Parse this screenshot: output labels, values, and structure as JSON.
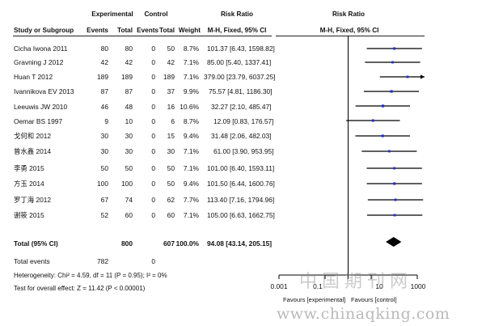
{
  "headers": {
    "experimental": "Experimental",
    "control": "Control",
    "risk_ratio": "Risk Ratio",
    "risk_ratio_plot": "Risk Ratio",
    "study": "Study or Subgroup",
    "events": "Events",
    "total": "Total",
    "events2": "Events",
    "total2": "Total",
    "weight": "Weight",
    "ci_label": "M-H, Fixed, 95% CI",
    "ci_label_plot": "M-H, Fixed, 95% CI"
  },
  "rows": [
    {
      "study": "Cicha Iwona 2011",
      "e_events": "80",
      "e_total": "80",
      "c_events": "0",
      "c_total": "50",
      "weight": "8.7%",
      "rr": "101.37 [6.43, 1598.82]"
    },
    {
      "study": "Gravning J 2012",
      "e_events": "42",
      "e_total": "42",
      "c_events": "0",
      "c_total": "42",
      "weight": "7.1%",
      "rr": "85.00 [5.40, 1337.41]"
    },
    {
      "study": "Huan T 2012",
      "e_events": "189",
      "e_total": "189",
      "c_events": "0",
      "c_total": "189",
      "weight": "7.1%",
      "rr": "379.00 [23.79, 6037.25]"
    },
    {
      "study": "Ivannikova EV 2013",
      "e_events": "87",
      "e_total": "87",
      "c_events": "0",
      "c_total": "37",
      "weight": "9.9%",
      "rr": "75.57 [4.81, 1186.30]"
    },
    {
      "study": "Leeuwis JW 2010",
      "e_events": "46",
      "e_total": "48",
      "c_events": "0",
      "c_total": "16",
      "weight": "10.6%",
      "rr": "32.27 [2.10, 485.47]"
    },
    {
      "study": "Oemar BS 1997",
      "e_events": "9",
      "e_total": "10",
      "c_events": "0",
      "c_total": "6",
      "weight": "8.7%",
      "rr": "12.09 [0.83, 176.57]"
    },
    {
      "study": "戈何和 2012",
      "e_events": "30",
      "e_total": "30",
      "c_events": "0",
      "c_total": "15",
      "weight": "9.4%",
      "rr": "31.48 [2.06, 482.03]"
    },
    {
      "study": "曾水鑫 2014",
      "e_events": "30",
      "e_total": "30",
      "c_events": "0",
      "c_total": "30",
      "weight": "7.1%",
      "rr": "61.00 [3.90, 953.95]"
    },
    {
      "study": "李勇 2015",
      "e_events": "50",
      "e_total": "50",
      "c_events": "0",
      "c_total": "50",
      "weight": "7.1%",
      "rr": "101.00 [6.40, 1593.11]"
    },
    {
      "study": "方玉 2014",
      "e_events": "100",
      "e_total": "100",
      "c_events": "0",
      "c_total": "50",
      "weight": "9.4%",
      "rr": "101.50 [6.44, 1600.76]"
    },
    {
      "study": "罗丁海 2012",
      "e_events": "67",
      "e_total": "74",
      "c_events": "0",
      "c_total": "62",
      "weight": "7.7%",
      "rr": "113.40 [7.16, 1794.96]"
    },
    {
      "study": "谢筱 2015",
      "e_events": "52",
      "e_total": "60",
      "c_events": "0",
      "c_total": "60",
      "weight": "7.1%",
      "rr": "105.00 [6.63, 1662.75]"
    }
  ],
  "total_row": {
    "label": "Total (95% CI)",
    "e_total": "800",
    "c_total": "607",
    "weight": "100.0%",
    "rr": "94.08 [43.14, 205.15]"
  },
  "total_events": {
    "label": "Total events",
    "e_events": "782",
    "c_events": "0"
  },
  "heterogeneity": "Heterogeneity: Chi² = 4.59, df = 11 (P = 0.95); I² = 0%",
  "overall_effect": "Test for overall effect: Z = 11.42 (P < 0.00001)",
  "axis": {
    "ticks": [
      "0.001",
      "0.1",
      "10",
      "1000"
    ],
    "favours_left": "Favours [experimental]",
    "favours_right": "Favours [control]"
  },
  "watermark": {
    "cn": "中国期刊网",
    "url": "www.chinaqking.com"
  },
  "colors": {
    "marker": "#1f2fd0",
    "line": "#000000",
    "diamond": "#000000"
  },
  "chart_data": {
    "type": "forest",
    "scale": "log",
    "xlim": [
      0.001,
      1000
    ],
    "null_value": 1,
    "studies": [
      {
        "name": "Cicha Iwona 2011",
        "rr": 101.37,
        "lo": 6.43,
        "hi": 1598.82,
        "weight": 8.7
      },
      {
        "name": "Gravning J 2012",
        "rr": 85.0,
        "lo": 5.4,
        "hi": 1337.41,
        "weight": 7.1
      },
      {
        "name": "Huan T 2012",
        "rr": 379.0,
        "lo": 23.79,
        "hi": 6037.25,
        "weight": 7.1
      },
      {
        "name": "Ivannikova EV 2013",
        "rr": 75.57,
        "lo": 4.81,
        "hi": 1186.3,
        "weight": 9.9
      },
      {
        "name": "Leeuwis JW 2010",
        "rr": 32.27,
        "lo": 2.1,
        "hi": 485.47,
        "weight": 10.6
      },
      {
        "name": "Oemar BS 1997",
        "rr": 12.09,
        "lo": 0.83,
        "hi": 176.57,
        "weight": 8.7
      },
      {
        "name": "戈何和 2012",
        "rr": 31.48,
        "lo": 2.06,
        "hi": 482.03,
        "weight": 9.4
      },
      {
        "name": "曾水鑫 2014",
        "rr": 61.0,
        "lo": 3.9,
        "hi": 953.95,
        "weight": 7.1
      },
      {
        "name": "李勇 2015",
        "rr": 101.0,
        "lo": 6.4,
        "hi": 1593.11,
        "weight": 7.1
      },
      {
        "name": "方玉 2014",
        "rr": 101.5,
        "lo": 6.44,
        "hi": 1600.76,
        "weight": 9.4
      },
      {
        "name": "罗丁海 2012",
        "rr": 113.4,
        "lo": 7.16,
        "hi": 1794.96,
        "weight": 7.7
      },
      {
        "name": "谢筱 2015",
        "rr": 105.0,
        "lo": 6.63,
        "hi": 1662.75,
        "weight": 7.1
      }
    ],
    "total": {
      "rr": 94.08,
      "lo": 43.14,
      "hi": 205.15
    }
  }
}
